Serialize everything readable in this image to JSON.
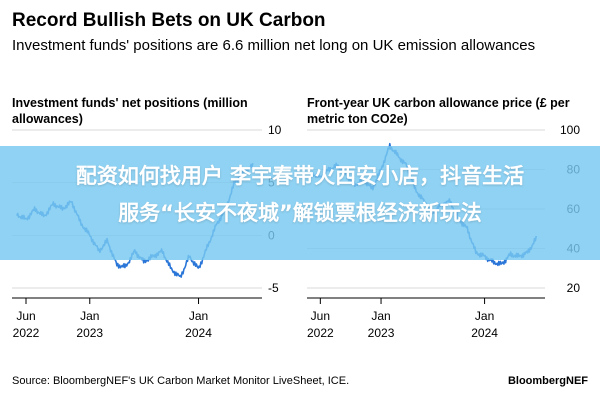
{
  "title": "Record Bullish Bets on UK Carbon",
  "subtitle": "Investment funds' positions are 6.6 million net long on UK emission allowances",
  "source": "Source: BloombergNEF's UK Carbon Market Monitor LiveSheet, ICE.",
  "brand": "BloombergNEF",
  "banner": {
    "line1": "配资如何找用户 李宇春带火西安小店，抖音生活",
    "line2": "服务“长安不夜城”解锁票根经济新玩法"
  },
  "colors": {
    "line": "#2a76d8",
    "banner": "#78c8f0",
    "grid": "#d9d9d9"
  },
  "chart_data": [
    {
      "type": "line",
      "title": "Investment funds' net positions (million allowances)",
      "x_ticks": [
        {
          "month": "Jun",
          "year": "2022"
        },
        {
          "month": "Jan",
          "year": "2023"
        },
        {
          "month": "Jan",
          "year": "2024"
        }
      ],
      "y_ticks": [
        10,
        5,
        0,
        -5
      ],
      "ylim": [
        -5,
        10
      ],
      "series": [
        {
          "x": [
            "2022-05-01",
            "2022-06-01",
            "2022-07-01",
            "2022-08-01",
            "2022-09-01",
            "2022-10-01",
            "2022-11-01",
            "2022-12-01",
            "2023-01-01",
            "2023-02-01",
            "2023-03-01",
            "2023-04-01",
            "2023-05-01",
            "2023-06-01",
            "2023-07-01",
            "2023-08-01",
            "2023-09-01",
            "2023-10-01",
            "2023-11-01",
            "2023-12-01",
            "2024-01-01",
            "2024-02-01",
            "2024-03-01",
            "2024-04-01",
            "2024-05-01",
            "2024-06-01",
            "2024-07-01"
          ],
          "values": [
            2.0,
            1.5,
            2.5,
            1.8,
            3.0,
            2.5,
            3.2,
            1.2,
            0.0,
            -1.5,
            -0.5,
            -2.8,
            -3.0,
            -1.5,
            -2.5,
            -2.0,
            -1.5,
            -3.2,
            -4.0,
            -2.0,
            -3.2,
            -1.0,
            1.0,
            2.5,
            5.0,
            6.0,
            6.6
          ]
        }
      ]
    },
    {
      "type": "line",
      "title": "Front-year UK carbon allowance price (£ per metric ton CO2e)",
      "x_ticks": [
        {
          "month": "Jun",
          "year": "2022"
        },
        {
          "month": "Jan",
          "year": "2023"
        },
        {
          "month": "Jan",
          "year": "2024"
        }
      ],
      "y_ticks": [
        100,
        80,
        60,
        40,
        20
      ],
      "ylim": [
        20,
        100
      ],
      "series": [
        {
          "x": [
            "2022-05-01",
            "2022-06-01",
            "2022-07-01",
            "2022-08-01",
            "2022-09-01",
            "2022-10-01",
            "2022-11-01",
            "2022-12-01",
            "2023-01-01",
            "2023-02-01",
            "2023-03-01",
            "2023-04-01",
            "2023-05-01",
            "2023-06-01",
            "2023-07-01",
            "2023-08-01",
            "2023-09-01",
            "2023-10-01",
            "2023-11-01",
            "2023-12-01",
            "2024-01-01",
            "2024-02-01",
            "2024-03-01",
            "2024-04-01",
            "2024-05-01",
            "2024-06-01",
            "2024-07-01"
          ],
          "values": [
            78,
            76,
            80,
            82,
            77,
            72,
            75,
            70,
            80,
            92,
            87,
            82,
            70,
            64,
            58,
            62,
            64,
            55,
            50,
            38,
            36,
            33,
            32,
            37,
            36,
            38,
            45
          ]
        }
      ]
    }
  ]
}
